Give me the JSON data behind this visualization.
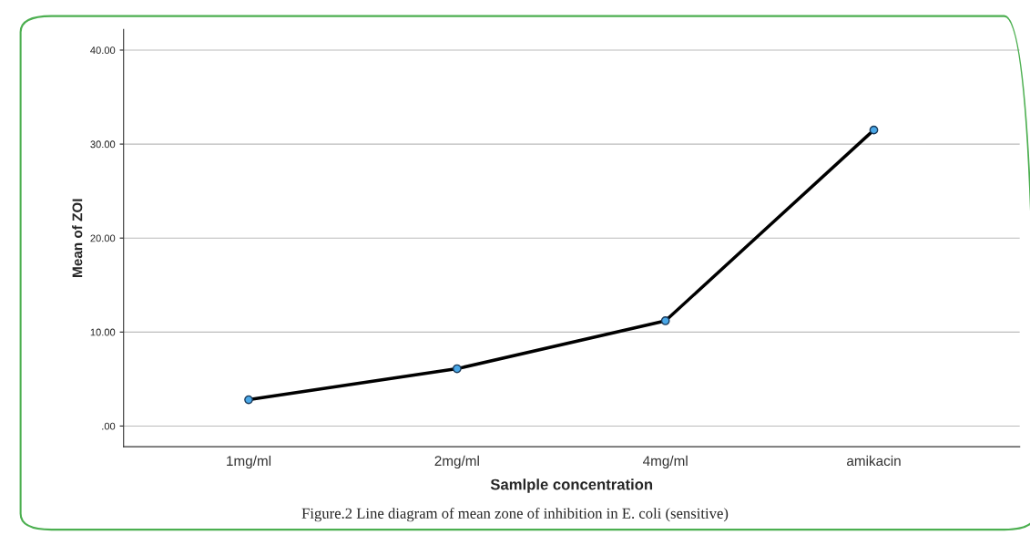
{
  "chart_data": {
    "type": "line",
    "xlabel": "Samlple concentration",
    "ylabel": "Mean of ZOI",
    "categories": [
      "1mg/ml",
      "2mg/ml",
      "4mg/ml",
      "amikacin"
    ],
    "series": [
      {
        "color": "#000000",
        "values": [
          2.8,
          6.1,
          11.2,
          31.5
        ]
      }
    ],
    "ylim": [
      -2.2,
      42.2
    ],
    "yticks": [
      {
        "value": 0,
        "label": ".00"
      },
      {
        "value": 10,
        "label": "10.00"
      },
      {
        "value": 20,
        "label": "20.00"
      },
      {
        "value": 30,
        "label": "30.00"
      },
      {
        "value": 40,
        "label": "40.00"
      }
    ],
    "grid": "y",
    "marker": "circle",
    "line_style": "solid",
    "legend": false,
    "annotations": [
      "Figure.2 Line diagram of mean zone of inhibition in E. coli (sensitive)"
    ]
  }
}
